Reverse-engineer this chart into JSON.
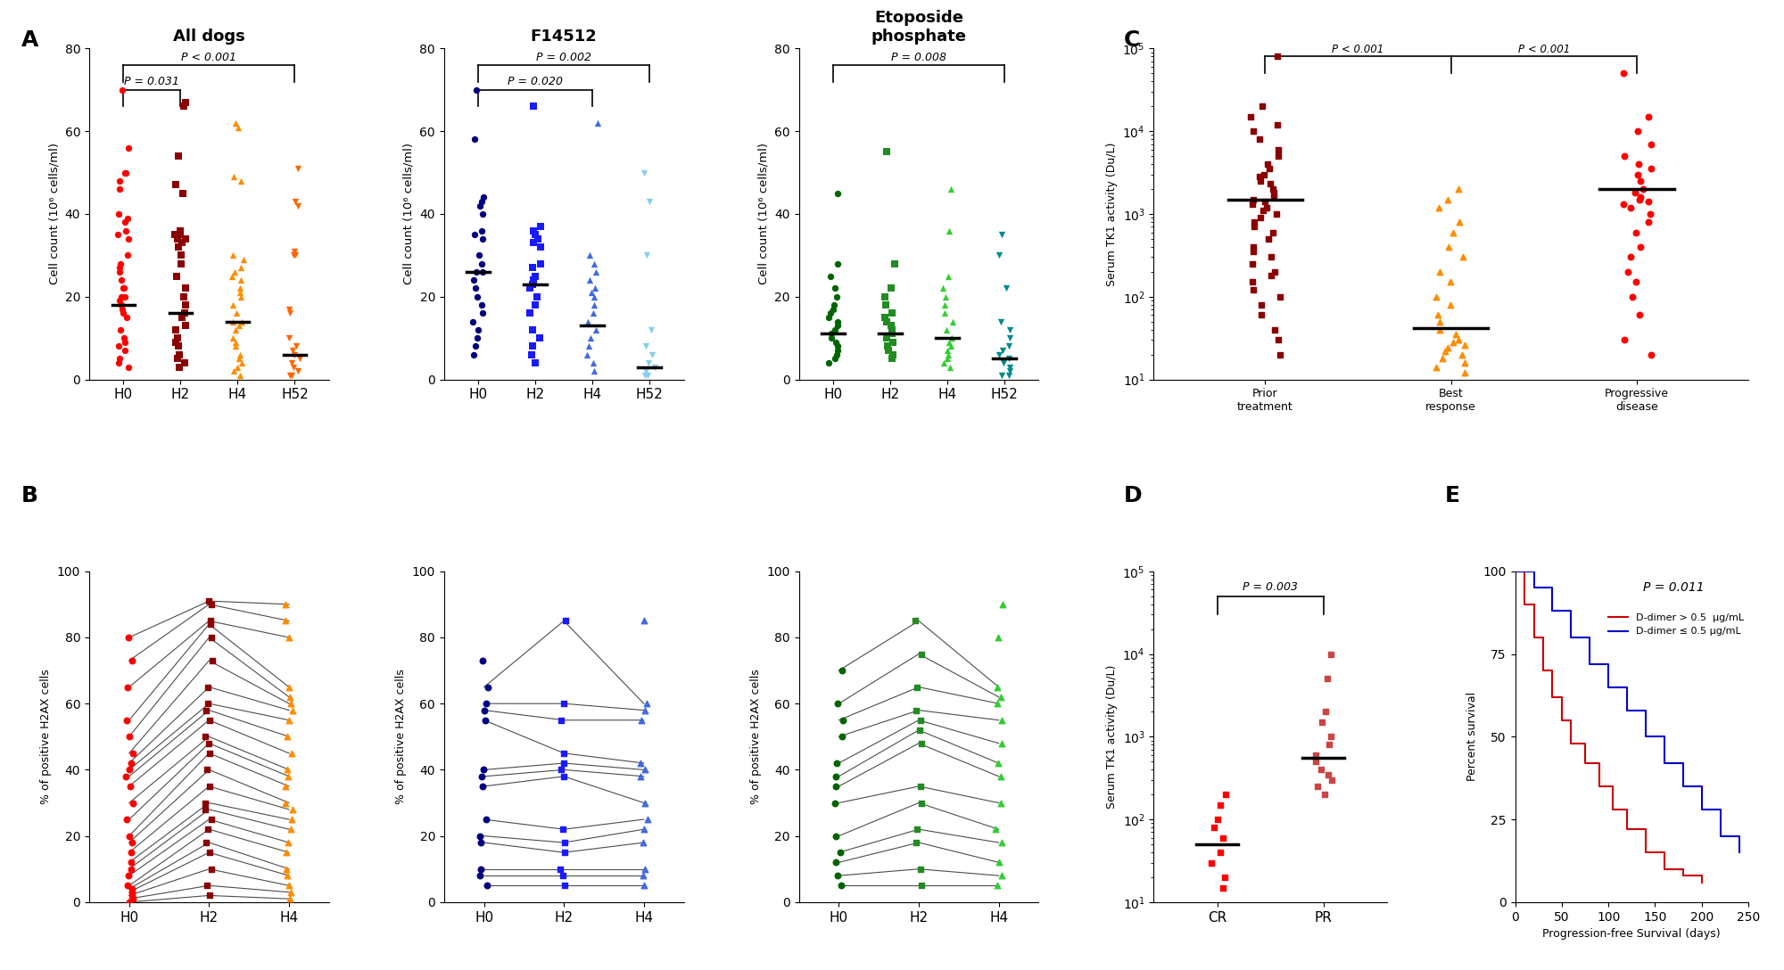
{
  "fig_width": 20.0,
  "fig_height": 10.88,
  "panel_A_title_alldog": "All dogs",
  "panel_A_title_F14512": "F14512",
  "panel_A_title_etopo": "Etoposide\nphosphate",
  "panel_A_ylabel": "Cell count (10⁶ cells/ml)",
  "panel_A_xticks": [
    "H0",
    "H2",
    "H4",
    "H52"
  ],
  "panel_A_ylim": [
    0,
    80
  ],
  "panel_A_yticks": [
    0,
    20,
    40,
    60,
    80
  ],
  "panel_B_ylabel": "% of positive H2AX cells",
  "panel_B_xticks": [
    "H0",
    "H2",
    "H4"
  ],
  "panel_B_ylim": [
    0,
    100
  ],
  "panel_B_yticks": [
    0,
    20,
    40,
    60,
    80,
    100
  ],
  "panel_C_ylabel": "Serum TK1 activity (Du/L)",
  "panel_C_xticks": [
    "Prior\ntreatment",
    "Best\nresponse",
    "Progressive\ndisease"
  ],
  "panel_C_ylim": [
    10,
    100000
  ],
  "panel_D_ylabel": "Serum TK1 activity (Du/L)",
  "panel_D_xticks": [
    "CR",
    "PR"
  ],
  "panel_D_ylim": [
    10,
    100000
  ],
  "panel_E_xlabel": "Progression-free Survival (days)",
  "panel_E_ylabel": "Percent survival",
  "panel_E_xlim": [
    0,
    250
  ],
  "panel_E_ylim": [
    0,
    100
  ],
  "panel_E_xticks": [
    0,
    50,
    100,
    150,
    200,
    250
  ],
  "panel_E_yticks": [
    0,
    25,
    50,
    75,
    100
  ],
  "colors": {
    "red": "#FF0000",
    "dark_red": "#8B0000",
    "orange": "#FF8C00",
    "dark_orange": "#FF6600",
    "navy": "#000080",
    "blue_mid": "#1a1aff",
    "blue": "#4169E1",
    "light_blue": "#87CEEB",
    "dark_green": "#006400",
    "green": "#228B22",
    "light_green": "#32CD32",
    "teal": "#008B8B",
    "survival_red": "#CC0000",
    "survival_blue": "#0000CC"
  },
  "p_alldog_H0_H2": "P = 0.031",
  "p_alldog_H0_H52": "P < 0.001",
  "p_F14512_H0_H2": "P = 0.020",
  "p_F14512_H0_H52": "P = 0.002",
  "p_etopo_H0_H52": "P = 0.008",
  "p_C_prior_best": "P < 0.001",
  "p_C_prog_best": "P < 0.001",
  "p_D": "P = 0.003",
  "p_E": "P = 0.011"
}
